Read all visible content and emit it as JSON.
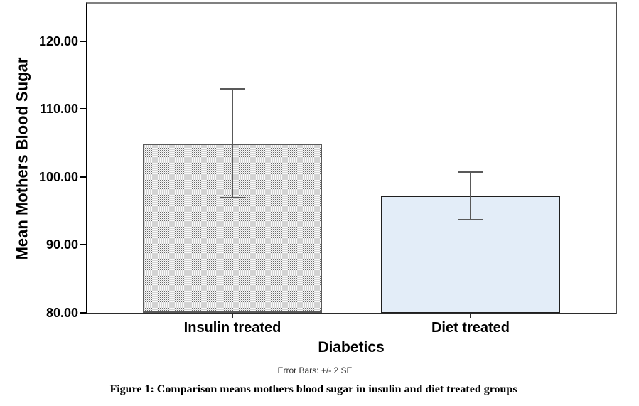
{
  "figure_caption": "Figure 1: Comparison means mothers blood sugar in insulin and diet treated groups",
  "chart_data": {
    "type": "bar",
    "title": "",
    "xlabel": "Diabetics",
    "ylabel": "Mean Mothers Blood Sugar",
    "footnote": "Error Bars: +/- 2 SE",
    "categories": [
      "Insulin treated",
      "Diet treated"
    ],
    "values": [
      104.9,
      97.2
    ],
    "error_upper": [
      112.9,
      100.7
    ],
    "error_lower": [
      96.9,
      93.7
    ],
    "se": [
      4.0,
      1.75
    ],
    "ylim": [
      80,
      125.5
    ],
    "yticks": [
      80,
      90,
      100,
      110,
      120
    ],
    "ytick_labels": [
      "80.00",
      "90.00",
      "100.00",
      "110.00",
      "120.00"
    ],
    "grid": false,
    "legend_position": "none",
    "styles": {
      "bar1_fill": "white-dot-stipple-pattern",
      "bar1_pattern_color": "#6a6a6a",
      "bar1_border": "#5a5a5a",
      "bar2_fill": "#e3edf8",
      "bar2_border": "#1f1f1f",
      "error_bar_color": "#595959",
      "axis_line_color": "#2b2b2b",
      "frame_top_color": "#808080",
      "tick_color": "#000000",
      "text_color": "#000000"
    }
  }
}
